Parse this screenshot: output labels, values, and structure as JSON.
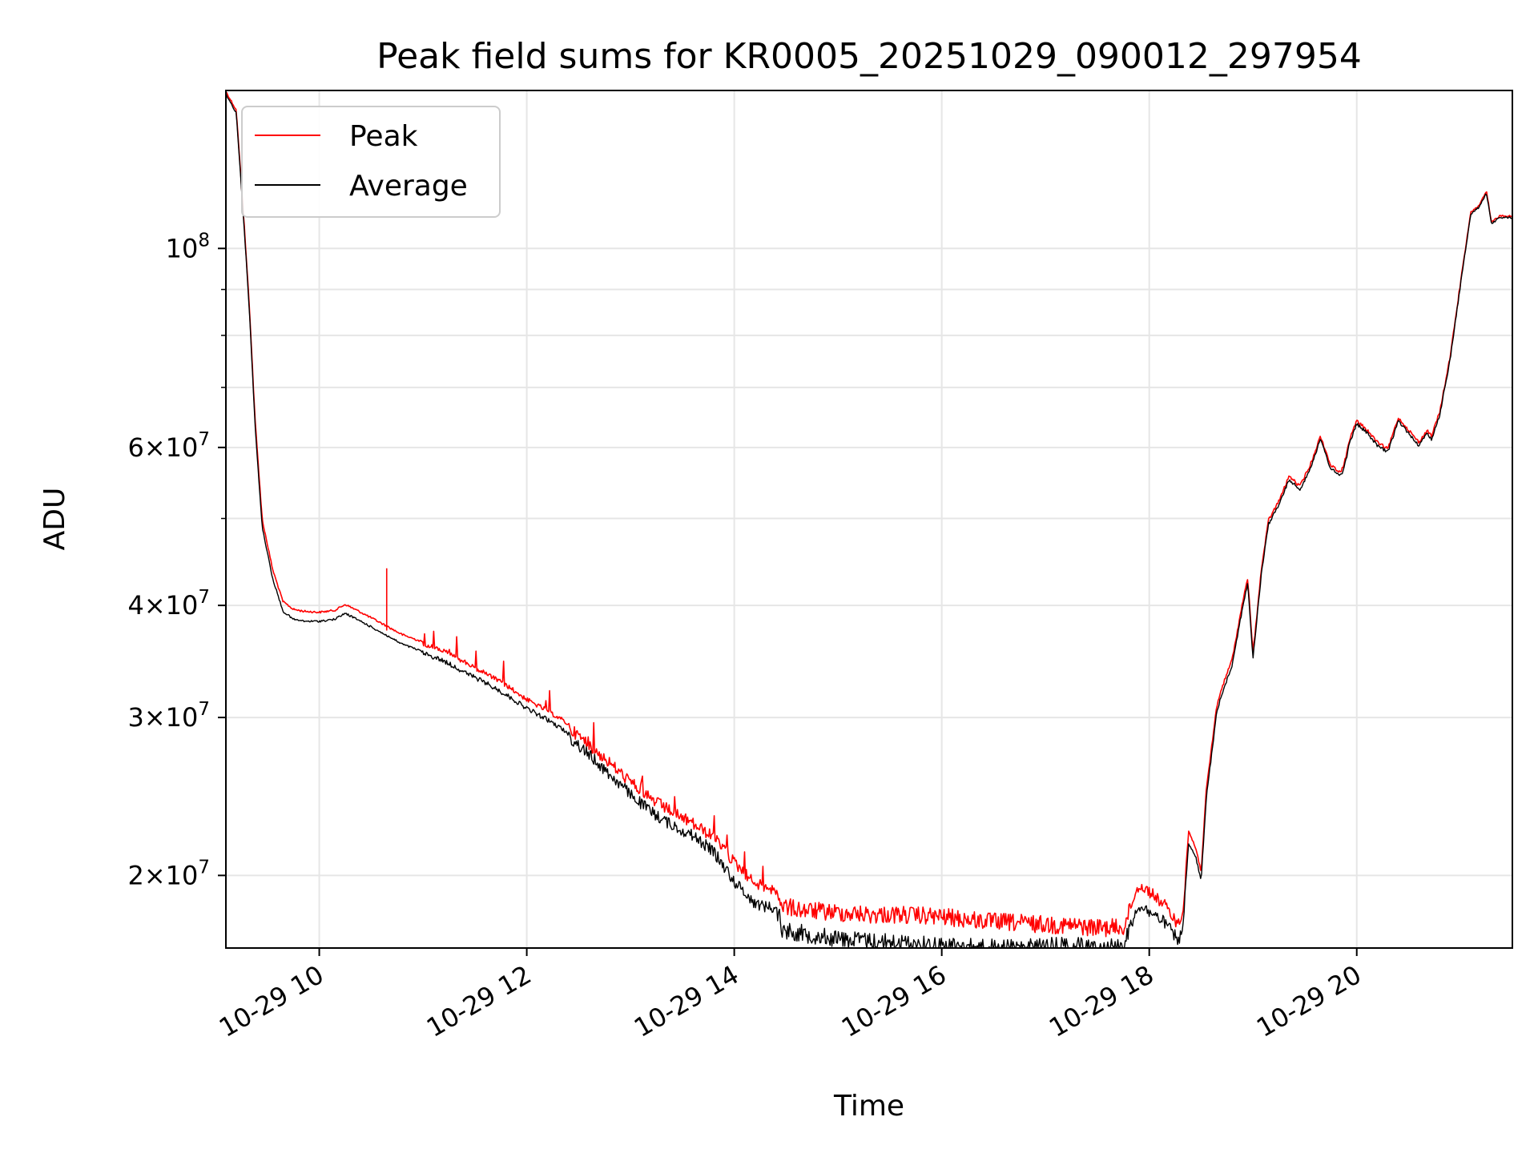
{
  "chart_data": {
    "type": "line",
    "title": "Peak field sums for KR0005_20251029_090012_297954",
    "xlabel": "Time",
    "ylabel": "ADU",
    "yscale": "log",
    "xlim": [
      9.1,
      21.5
    ],
    "ylim": [
      16600000,
      150000000
    ],
    "grid": true,
    "legend_position": "top-left",
    "x_ticks": [
      {
        "value": 10,
        "label": "10-29 10"
      },
      {
        "value": 12,
        "label": "10-29 12"
      },
      {
        "value": 14,
        "label": "10-29 14"
      },
      {
        "value": 16,
        "label": "10-29 16"
      },
      {
        "value": 18,
        "label": "10-29 18"
      },
      {
        "value": 20,
        "label": "10-29 20"
      }
    ],
    "y_ticks": [
      {
        "value": 20000000,
        "mant": "2",
        "exp": "7"
      },
      {
        "value": 30000000,
        "mant": "3",
        "exp": "7"
      },
      {
        "value": 40000000,
        "mant": "4",
        "exp": "7"
      },
      {
        "value": 60000000,
        "mant": "6",
        "exp": "7"
      },
      {
        "value": 100000000,
        "mant": "",
        "exp": "8"
      }
    ],
    "y_minor_ticks": [
      50000000,
      70000000,
      80000000,
      90000000
    ],
    "times": [
      9.1,
      9.2,
      9.28,
      9.33,
      9.38,
      9.45,
      9.55,
      9.65,
      9.75,
      9.85,
      10.0,
      10.15,
      10.25,
      10.4,
      10.6,
      10.8,
      11.0,
      11.2,
      11.4,
      11.6,
      11.8,
      12.0,
      12.2,
      12.4,
      12.6,
      12.8,
      13.0,
      13.2,
      13.4,
      13.6,
      13.8,
      14.0,
      14.2,
      14.43,
      14.46,
      14.7,
      15.0,
      15.3,
      15.6,
      16.0,
      16.4,
      16.8,
      17.2,
      17.5,
      17.75,
      17.9,
      18.0,
      18.15,
      18.28,
      18.32,
      18.38,
      18.45,
      18.5,
      18.55,
      18.65,
      18.7,
      18.8,
      18.9,
      18.95,
      19.0,
      19.08,
      19.15,
      19.25,
      19.35,
      19.45,
      19.55,
      19.65,
      19.75,
      19.85,
      19.9,
      19.92,
      20.0,
      20.1,
      20.2,
      20.3,
      20.4,
      20.5,
      20.6,
      20.68,
      20.72,
      20.8,
      20.9,
      21.0,
      21.1,
      21.18,
      21.25,
      21.3,
      21.33,
      21.38,
      21.45,
      21.5
    ],
    "series": [
      {
        "name": "Peak",
        "color": "#ff0000",
        "values": [
          150000000,
          143000000,
          105000000,
          85000000,
          65000000,
          50000000,
          44000000,
          40500000,
          39700000,
          39500000,
          39400000,
          39600000,
          40200000,
          39400000,
          38300000,
          37200000,
          36500000,
          35800000,
          34800000,
          33800000,
          32800000,
          31600000,
          30700000,
          29700000,
          28400000,
          27100000,
          25800000,
          24700000,
          23900000,
          23200000,
          22400000,
          21000000,
          19900000,
          19500000,
          18900000,
          18700000,
          18600000,
          18500000,
          18500000,
          18400000,
          18200000,
          18100000,
          18000000,
          17900000,
          17900000,
          19800000,
          19500000,
          18800000,
          17900000,
          18300000,
          22500000,
          21500000,
          20300000,
          25000000,
          31000000,
          32500000,
          35000000,
          40500000,
          43000000,
          35500000,
          44000000,
          50000000,
          52500000,
          56000000,
          54500000,
          57500000,
          62000000,
          57500000,
          56500000,
          59000000,
          61000000,
          64500000,
          63000000,
          61000000,
          60000000,
          65000000,
          63000000,
          61000000,
          63000000,
          62000000,
          66000000,
          76000000,
          92000000,
          110000000,
          112000000,
          116000000,
          107000000,
          108000000,
          109000000,
          109000000,
          109000000
        ]
      },
      {
        "name": "Average",
        "color": "#000000",
        "values": [
          149000000,
          142000000,
          104000000,
          84000000,
          64000000,
          49000000,
          43000000,
          39500000,
          38700000,
          38500000,
          38500000,
          38700000,
          39300000,
          38500000,
          37400000,
          36300000,
          35600000,
          34900000,
          33900000,
          33000000,
          32000000,
          30900000,
          30000000,
          29000000,
          27700000,
          26300000,
          25000000,
          23900000,
          23100000,
          22500000,
          21600000,
          20000000,
          18900000,
          18600000,
          17800000,
          17600000,
          17400000,
          17300000,
          17200000,
          17100000,
          17000000,
          17000000,
          17100000,
          17000000,
          17100000,
          18800000,
          18500000,
          18000000,
          17200000,
          17500000,
          21800000,
          21000000,
          19800000,
          24500000,
          30500000,
          32000000,
          34500000,
          40000000,
          42500000,
          35000000,
          43500000,
          49500000,
          52000000,
          55500000,
          54000000,
          57000000,
          61500000,
          57000000,
          56000000,
          58500000,
          60500000,
          64000000,
          62500000,
          60500000,
          59500000,
          64500000,
          62500000,
          60500000,
          62500000,
          61500000,
          65500000,
          75500000,
          91500000,
          109500000,
          111500000,
          115500000,
          106500000,
          107500000,
          108500000,
          108500000,
          108500000
        ]
      }
    ]
  }
}
